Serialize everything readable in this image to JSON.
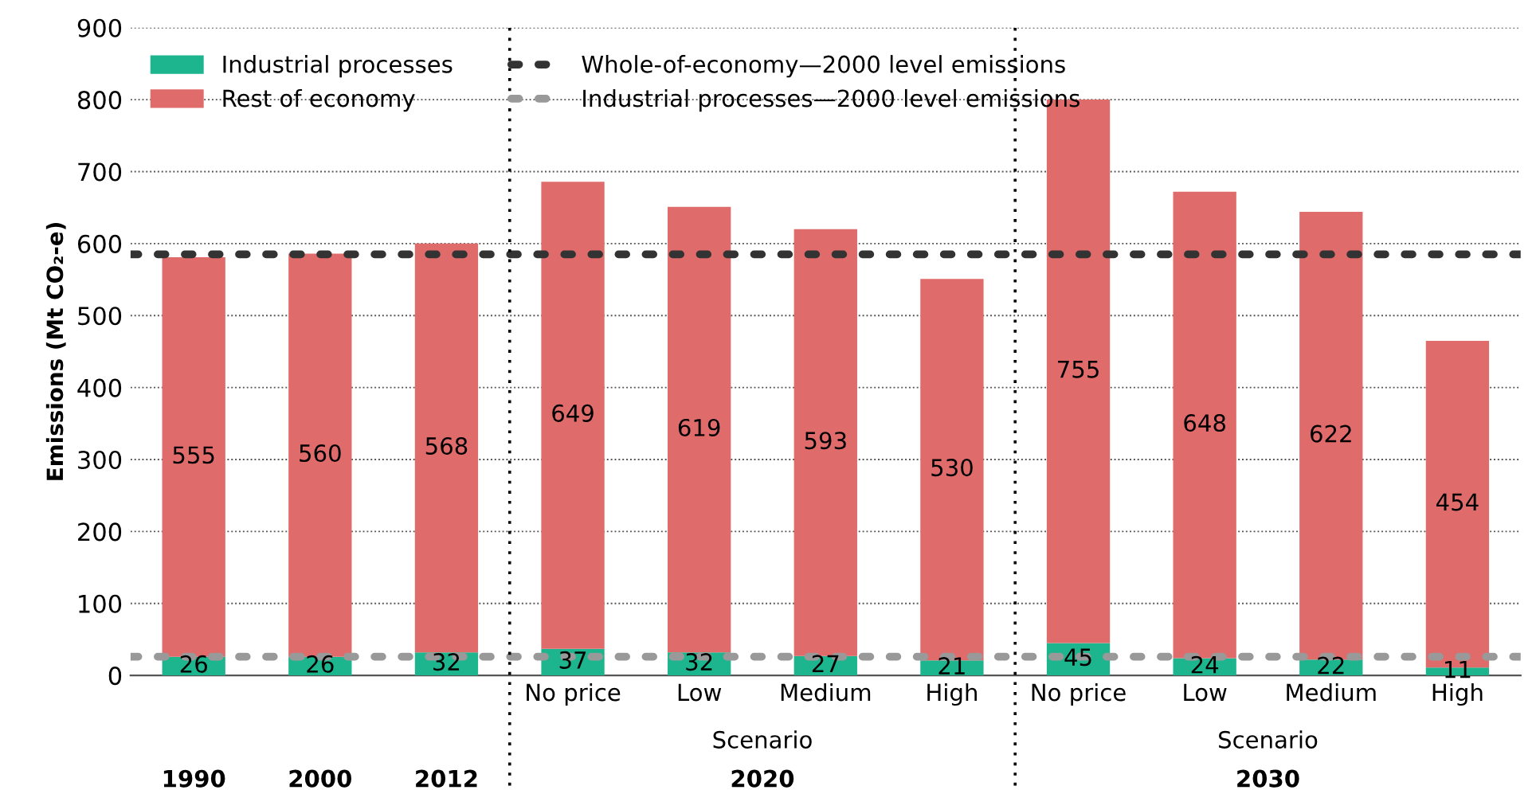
{
  "chart_data": {
    "type": "bar",
    "stacked": true,
    "ylabel": "Emissions (Mt CO₂-e)",
    "categories": [
      null,
      null,
      null,
      "No price",
      "Low",
      "Medium",
      "High",
      "No price",
      "Low",
      "Medium",
      "High"
    ],
    "series": [
      {
        "name": "Industrial processes",
        "color": "#1cb58e",
        "values": [
          26,
          26,
          32,
          37,
          32,
          27,
          21,
          45,
          24,
          22,
          11
        ]
      },
      {
        "name": "Rest of economy",
        "color": "#e06b6b",
        "values": [
          555,
          560,
          568,
          649,
          619,
          593,
          530,
          755,
          648,
          622,
          454
        ]
      }
    ],
    "data_labels": true,
    "ylim": [
      0,
      900
    ],
    "yticks": [
      0,
      100,
      200,
      300,
      400,
      500,
      600,
      700,
      800,
      900
    ],
    "grid": "y",
    "legend": "top left",
    "ref_lines": [
      {
        "axis": "y",
        "value": 585,
        "label": "Whole-of-economy—2000 level emissions",
        "color": "#333333",
        "line_style": "dotted"
      },
      {
        "axis": "y",
        "value": 26,
        "label": "Industrial processes—2000 level emissions",
        "color": "#999999",
        "line_style": "dotted"
      }
    ],
    "annotations": [
      "Scenario",
      "Scenario",
      "1990",
      "2000",
      "2012",
      "2020",
      "2030"
    ]
  }
}
